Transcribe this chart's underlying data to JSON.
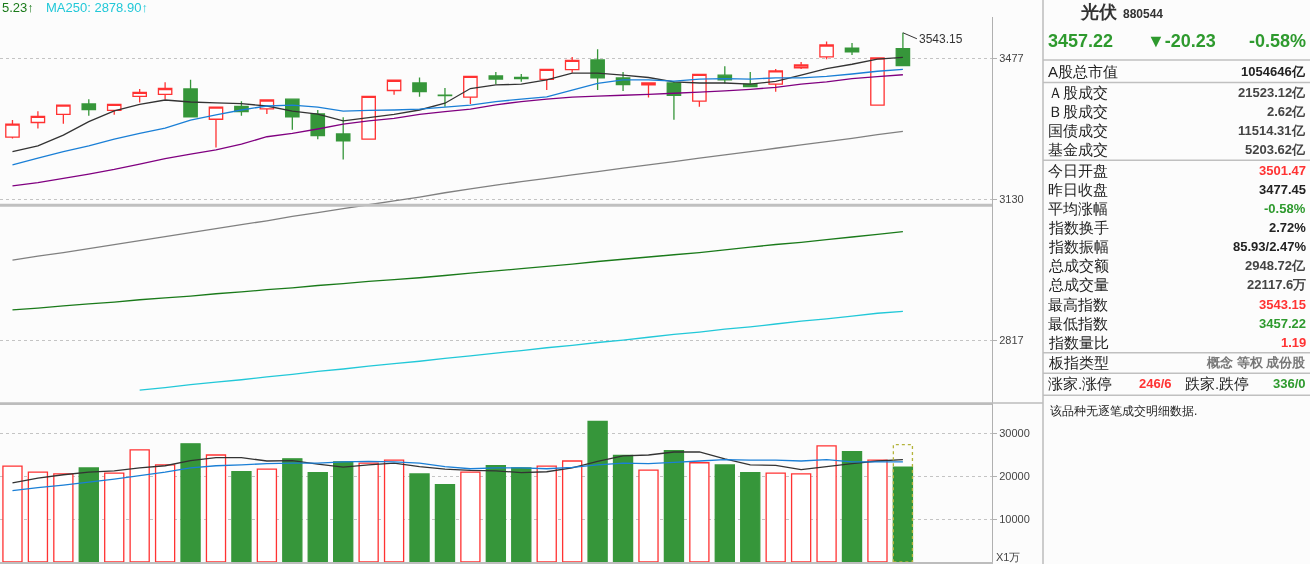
{
  "chart_data": [
    {
      "type": "candlestick",
      "categories": [
        null,
        null,
        null,
        null,
        null,
        null,
        null,
        null,
        null,
        null,
        null,
        null,
        null,
        null,
        null,
        null,
        null,
        null,
        null,
        null,
        null,
        null,
        null,
        null,
        null,
        null,
        null,
        null,
        null,
        null,
        null,
        null,
        null,
        null,
        null,
        null
      ],
      "ohlc": [
        [
          3278,
          3320,
          3275,
          3310
        ],
        [
          3314,
          3342,
          3299,
          3329
        ],
        [
          3334,
          3357,
          3311,
          3357
        ],
        [
          3360,
          3372,
          3331,
          3346
        ],
        [
          3344,
          3359,
          3333,
          3359
        ],
        [
          3379,
          3398,
          3364,
          3389
        ],
        [
          3384,
          3415,
          3372,
          3399
        ],
        [
          3398,
          3421,
          3328,
          3328
        ],
        [
          3322,
          3352,
          3253,
          3352
        ],
        [
          3354,
          3367,
          3331,
          3341
        ],
        [
          3348,
          3370,
          3335,
          3370
        ],
        [
          3372,
          3372,
          3296,
          3328
        ],
        [
          3335,
          3345,
          3273,
          3282
        ],
        [
          3286,
          3327,
          3224,
          3269
        ],
        [
          3273,
          3379,
          3273,
          3379
        ],
        [
          3394,
          3420,
          3383,
          3420
        ],
        [
          3413,
          3427,
          3378,
          3391
        ],
        [
          3382,
          3400,
          3353,
          3381
        ],
        [
          3377,
          3430,
          3360,
          3430
        ],
        [
          3431,
          3441,
          3410,
          3423
        ],
        [
          3427,
          3436,
          3416,
          3424
        ],
        [
          3422,
          3448,
          3395,
          3448
        ],
        [
          3447,
          3480,
          3439,
          3471
        ],
        [
          3472,
          3500,
          3395,
          3426
        ],
        [
          3426,
          3441,
          3393,
          3409
        ],
        [
          3408,
          3413,
          3376,
          3413
        ],
        [
          3413,
          3416,
          3321,
          3382
        ],
        [
          3367,
          3435,
          3353,
          3435
        ],
        [
          3433,
          3456,
          3412,
          3421
        ],
        [
          3410,
          3441,
          3404,
          3404
        ],
        [
          3410,
          3449,
          3391,
          3444
        ],
        [
          3452,
          3467,
          3449,
          3459
        ],
        [
          3480,
          3520,
          3474,
          3511
        ],
        [
          3503,
          3516,
          3485,
          3493
        ],
        [
          3357,
          3479,
          3357,
          3477.45
        ],
        [
          3501.47,
          3543.15,
          3457.22,
          3457.22
        ]
      ],
      "colors": [
        "#ff3232",
        "#ff3232",
        "#ff3232",
        "#36963a",
        "#ff3232",
        "#ff3232",
        "#ff3232",
        "#36963a",
        "#ff3232",
        "#36963a",
        "#ff3232",
        "#36963a",
        "#36963a",
        "#36963a",
        "#ff3232",
        "#ff3232",
        "#36963a",
        "#36963a",
        "#ff3232",
        "#36963a",
        "#36963a",
        "#ff3232",
        "#ff3232",
        "#36963a",
        "#36963a",
        "#ff3232",
        "#36963a",
        "#ff3232",
        "#36963a",
        "#36963a",
        "#ff3232",
        "#ff3232",
        "#ff3232",
        "#36963a",
        "#ff3232",
        "#36963a"
      ],
      "series": [
        {
          "type": "line",
          "color": "#333333",
          "values": [
            3243,
            3257,
            3283,
            3316,
            3343,
            3359,
            3370,
            3365,
            3363,
            3361,
            3355,
            3342,
            3335,
            3318,
            3326,
            3334,
            3345,
            3362,
            3399,
            3408,
            3410,
            3421,
            3438,
            3438,
            3433,
            3427,
            3416,
            3413,
            3413,
            3410,
            3417,
            3433,
            3450,
            3461,
            3474,
            3479
          ]
        },
        {
          "type": "line",
          "color": "#1a7fd6",
          "values": [
            3211,
            3227,
            3243,
            3257,
            3273,
            3287,
            3300,
            3320,
            3333,
            3345,
            3355,
            3357,
            3352,
            3342,
            3344,
            3345,
            3347,
            3352,
            3357,
            3366,
            3372,
            3378,
            3395,
            3412,
            3421,
            3421,
            3418,
            3423,
            3424,
            3423,
            3426,
            3426,
            3430,
            3436,
            3443,
            3448
          ]
        },
        {
          "type": "line",
          "color": "#800080",
          "values": [
            3161,
            3169,
            3179,
            3189,
            3200,
            3213,
            3226,
            3237,
            3247,
            3261,
            3279,
            3287,
            3298,
            3310,
            3318,
            3324,
            3334,
            3341,
            3347,
            3358,
            3366,
            3372,
            3377,
            3380,
            3382,
            3384,
            3387,
            3390,
            3393,
            3397,
            3402,
            3410,
            3416,
            3424,
            3429,
            3434
          ]
        },
        {
          "type": "line",
          "color": "#808080",
          "values": [
            2991,
            3000,
            3008,
            3017,
            3026,
            3035,
            3044,
            3053,
            3062,
            3071,
            3080,
            3090,
            3099,
            3108,
            3117,
            3126,
            3135,
            3145,
            3154,
            3163,
            3171,
            3179,
            3187,
            3195,
            3203,
            3211,
            3219,
            3227,
            3235,
            3243,
            3251,
            3259,
            3267,
            3275,
            3284,
            3292
          ]
        },
        {
          "type": "line",
          "name": "5.23↑",
          "color": "#1a7a1a",
          "values": [
            2882,
            2886,
            2891,
            2895,
            2899,
            2904,
            2908,
            2912,
            2917,
            2921,
            2926,
            2930,
            2935,
            2939,
            2944,
            2948,
            2952,
            2957,
            2962,
            2967,
            2972,
            2977,
            2982,
            2988,
            2993,
            2998,
            3003,
            3008,
            3014,
            3020,
            3026,
            3031,
            3037,
            3043,
            3049,
            3055
          ]
        },
        {
          "type": "line",
          "name": "MA250: 2878.90↑",
          "color": "#22c8d8",
          "values": [
            null,
            null,
            null,
            null,
            null,
            2715,
            2720,
            2726,
            2731,
            2736,
            2742,
            2747,
            2753,
            2758,
            2764,
            2769,
            2774,
            2780,
            2785,
            2791,
            2796,
            2802,
            2807,
            2813,
            2818,
            2824,
            2830,
            2835,
            2841,
            2846,
            2852,
            2858,
            2863,
            2869,
            2875,
            2878.9
          ]
        }
      ],
      "log": "y",
      "ylim": [
        2689,
        3585
      ],
      "yticks": [
        3477,
        3130,
        2817
      ],
      "grid": "y",
      "tick_labels": "y",
      "ref_lines": [
        {
          "axis": "y",
          "value": 3116,
          "color": "#c0c0c0"
        }
      ],
      "annotations": [
        "3543.15"
      ]
    },
    {
      "type": "bar",
      "categories": [
        null,
        null,
        null,
        null,
        null,
        null,
        null,
        null,
        null,
        null,
        null,
        null,
        null,
        null,
        null,
        null,
        null,
        null,
        null,
        null,
        null,
        null,
        null,
        null,
        null,
        null,
        null,
        null,
        null,
        null,
        null,
        null,
        null,
        null,
        null,
        null
      ],
      "values": [
        22300,
        20900,
        20500,
        21900,
        20700,
        26100,
        22600,
        27500,
        24900,
        21000,
        21600,
        24000,
        20800,
        23300,
        23000,
        23700,
        20500,
        18000,
        20900,
        22400,
        21900,
        22300,
        23500,
        32700,
        24800,
        21400,
        25900,
        23100,
        22600,
        20800,
        20700,
        20500,
        27000,
        25700,
        23700,
        22100
      ],
      "colors": [
        "#ff3232",
        "#ff3232",
        "#ff3232",
        "#36963a",
        "#ff3232",
        "#ff3232",
        "#ff3232",
        "#36963a",
        "#ff3232",
        "#36963a",
        "#ff3232",
        "#36963a",
        "#36963a",
        "#36963a",
        "#ff3232",
        "#ff3232",
        "#36963a",
        "#36963a",
        "#ff3232",
        "#36963a",
        "#36963a",
        "#ff3232",
        "#ff3232",
        "#36963a",
        "#36963a",
        "#ff3232",
        "#36963a",
        "#ff3232",
        "#36963a",
        "#36963a",
        "#ff3232",
        "#ff3232",
        "#ff3232",
        "#36963a",
        "#ff3232",
        "#36963a"
      ],
      "series": [
        {
          "type": "bar",
          "color": "#b4b43c",
          "line_style": "dotted",
          "values": [
            null,
            null,
            null,
            null,
            null,
            null,
            null,
            null,
            null,
            null,
            null,
            null,
            null,
            null,
            null,
            null,
            null,
            null,
            null,
            null,
            null,
            null,
            null,
            null,
            null,
            null,
            null,
            null,
            null,
            null,
            null,
            null,
            null,
            null,
            null,
            27300
          ]
        },
        {
          "type": "line",
          "color": "#333333",
          "values": [
            18400,
            19500,
            20300,
            20900,
            21200,
            21900,
            22400,
            23600,
            24300,
            24300,
            23500,
            23600,
            22800,
            22100,
            22600,
            23000,
            22200,
            21600,
            21300,
            21200,
            20800,
            21000,
            21900,
            23400,
            24700,
            24900,
            25600,
            25600,
            24000,
            22600,
            22500,
            21500,
            22200,
            22900,
            23500,
            23800
          ]
        },
        {
          "type": "line",
          "color": "#1a7fd6",
          "values": [
            16600,
            17300,
            17900,
            18600,
            19300,
            20100,
            20900,
            21900,
            22400,
            22600,
            22900,
            23000,
            23000,
            23300,
            23400,
            23300,
            23000,
            22200,
            21700,
            21900,
            21900,
            21700,
            22000,
            22600,
            23000,
            22900,
            23200,
            23500,
            23800,
            23700,
            23700,
            23500,
            23800,
            23300,
            23300,
            23300
          ]
        }
      ],
      "ylim": [
        0,
        37000
      ],
      "yticks": [
        10000,
        20000,
        30000
      ],
      "ylabel": "X1万",
      "grid": "y",
      "tick_labels": "y"
    },
    {
      "type": "other",
      "title": "光伏",
      "subtitle": "880544",
      "categories": [
        "A股总市值",
        "Ａ股成交",
        "Ｂ股成交",
        "国债成交",
        "基金成交",
        "今日开盘",
        "昨日收盘",
        "平均涨幅",
        "指数换手",
        "指数振幅",
        "总成交额",
        "总成交量",
        "最高指数",
        "最低指数",
        "指数量比",
        "板指类型",
        "涨家.涨停",
        "跌家.跌停"
      ],
      "value_labels": [
        "1054646亿",
        "21523.12亿",
        "2.62亿",
        "11514.31亿",
        "5203.62亿",
        "3501.47",
        "3477.45",
        "-0.58%",
        "2.72%",
        "85.93/2.47%",
        "2948.72亿",
        "22117.6万",
        "3543.15",
        "3457.22",
        "1.19",
        "概念 等权 成份股",
        "246/6",
        "336/0"
      ],
      "colors": [
        "#222222",
        "#444444",
        "#444444",
        "#444444",
        "#444444",
        "#ff3232",
        "#222222",
        "#2e9a2e",
        "#222222",
        "#222222",
        "#444444",
        "#444444",
        "#ff3232",
        "#2e9a2e",
        "#ff3232",
        "#777777",
        "#ff3232",
        "#2e9a2e"
      ],
      "annotations": [
        "3457.22",
        "▼-20.23",
        "-0.58%",
        "该品种无逐笔成交明细数据."
      ]
    }
  ]
}
